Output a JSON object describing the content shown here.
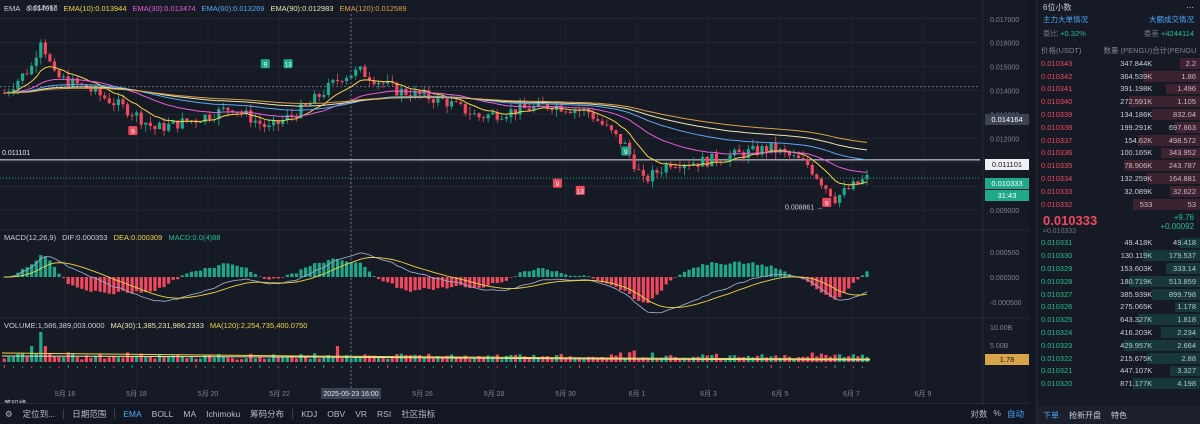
{
  "legend_ema": {
    "title": "EMA",
    "v0": "0.014010",
    "ema10": "EMA(10):0.013944",
    "ema30": "EMA(30):0.013474",
    "ema60": "EMA(60):0.013269",
    "ema90": "EMA(90):0.012983",
    "ema120": "EMA(120):0.012589"
  },
  "legend_macd": {
    "title": "MACD(12,26,9)",
    "dif": "DIF:0.000353",
    "dea": "DEA:0.000309",
    "macd": "MACD:0.0(4)88"
  },
  "legend_vol": {
    "title": "VOLUME:1,586,389,003.0000",
    "ma30": "MA(30):1,385,231,986.2333",
    "ma120": "MA(120):2,254,735,400.0750"
  },
  "main_y_ticks": [
    "0.017000",
    "0.016000",
    "0.015000",
    "0.014000",
    "0.013000",
    "0.012000",
    "0.011000",
    "0.010000",
    "0.009000"
  ],
  "macd_y_ticks": [
    "0.000500",
    "0.000000",
    "-0.000500"
  ],
  "vol_y_ticks": [
    "10.00B",
    "5.00B"
  ],
  "x_labels": [
    "5月 16",
    "5月 18",
    "5月 20",
    "5月 22",
    "2025-05-23 16:00",
    "5月 26",
    "5月 28",
    "5月 30",
    "6月 1",
    "6月 3",
    "6月 5",
    "6月 7",
    "6月 9"
  ],
  "price_tags": {
    "crosshair": "0.014164",
    "prev_close": "0.011101",
    "last": "0.010333",
    "countdown": "31:43",
    "vol_last": "1.78",
    "left_line": "0.011101",
    "low_note": "0.008861",
    "left_top": "0.01?467"
  },
  "td_markers": [
    {
      "label": "9",
      "color": "#1fa98a"
    },
    {
      "label": "13",
      "color": "#1fa98a"
    },
    {
      "label": "9",
      "color": "#f0495f"
    },
    {
      "label": "9",
      "color": "#1fa98a"
    },
    {
      "label": "9",
      "color": "#f0495f"
    },
    {
      "label": "13",
      "color": "#f0495f"
    },
    {
      "label": "9",
      "color": "#f0495f"
    }
  ],
  "bottom_label": "筹码峰",
  "toolbar": {
    "setting_label": "定位到...",
    "range_label": "日期范围",
    "indicators_main": [
      "EMA",
      "BOLL",
      "MA",
      "Ichimoku",
      "筹码分布"
    ],
    "indicators_sub": [
      "KDJ",
      "OBV",
      "VR",
      "RSI"
    ],
    "community": "社区指标",
    "right": [
      "对数",
      "%",
      "自动"
    ]
  },
  "side": {
    "precision": "6位小数",
    "big_order": "主力大单情况",
    "big_volume": "大额成交情况",
    "buy_label": "委比",
    "buy_value": "+0.32%",
    "diff_label": "委差",
    "diff_value": "+4244114",
    "col_price": "价格(USDT)",
    "col_qty": "数量 (PENGU)",
    "col_total": "合计(PENGU)",
    "asks": [
      {
        "p": "0.010343",
        "q": "347.844K",
        "t": "2.2"
      },
      {
        "p": "0.010342",
        "q": "364.539K",
        "t": "1.86"
      },
      {
        "p": "0.010341",
        "q": "391.198K",
        "t": "1.496"
      },
      {
        "p": "0.010340",
        "q": "272.591K",
        "t": "1.105"
      },
      {
        "p": "0.010339",
        "q": "134.186K",
        "t": "832.04"
      },
      {
        "p": "0.010338",
        "q": "199.291K",
        "t": "697.863"
      },
      {
        "p": "0.010337",
        "q": "154.62K",
        "t": "498.572"
      },
      {
        "p": "0.010336",
        "q": "100.165K",
        "t": "343.952"
      },
      {
        "p": "0.010335",
        "q": "78.906K",
        "t": "243.787"
      },
      {
        "p": "0.010334",
        "q": "132.259K",
        "t": "164.881"
      },
      {
        "p": "0.010333",
        "q": "32.089K",
        "t": "32.622"
      },
      {
        "p": "0.010332",
        "q": "533",
        "t": "53"
      }
    ],
    "last_price": "0.010333",
    "last_sub": "≈0.010333",
    "change1": "+9.76",
    "change2": "+0.00092",
    "bids": [
      {
        "p": "0.010331",
        "q": "49.418K",
        "t": "49.418"
      },
      {
        "p": "0.010330",
        "q": "130.119K",
        "t": "179.537"
      },
      {
        "p": "0.010329",
        "q": "153.603K",
        "t": "333.14"
      },
      {
        "p": "0.010328",
        "q": "180.719K",
        "t": "513.859"
      },
      {
        "p": "0.010327",
        "q": "385.939K",
        "t": "899.798"
      },
      {
        "p": "0.010326",
        "q": "275.065K",
        "t": "1.178"
      },
      {
        "p": "0.010325",
        "q": "643.327K",
        "t": "1.818"
      },
      {
        "p": "0.010324",
        "q": "416.203K",
        "t": "2.234"
      },
      {
        "p": "0.010323",
        "q": "429.957K",
        "t": "2.664"
      },
      {
        "p": "0.010322",
        "q": "215.675K",
        "t": "2.88"
      },
      {
        "p": "0.010321",
        "q": "447.107K",
        "t": "3.327"
      },
      {
        "p": "0.010320",
        "q": "871.177K",
        "t": "4.198"
      }
    ],
    "tab1": "下单",
    "tab2": "抢新开盘",
    "tab3": "特色"
  }
}
